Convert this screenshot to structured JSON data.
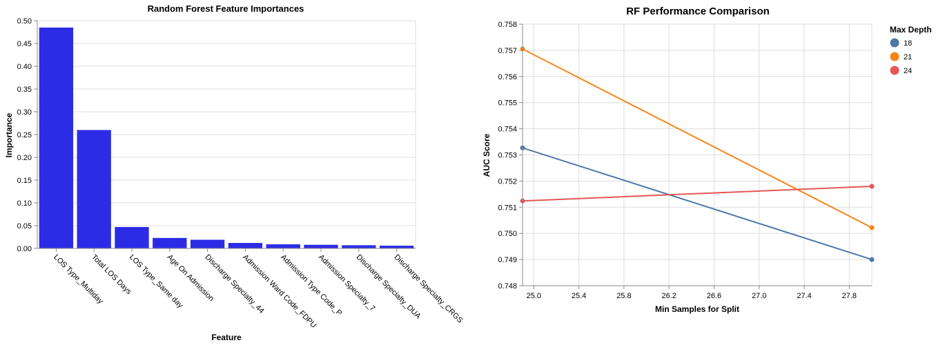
{
  "chart_data": [
    {
      "type": "bar",
      "title": "Random Forest Feature Importances",
      "xlabel": "Feature",
      "ylabel": "Importance",
      "categories": [
        "LOS Type_Multiday",
        "Total LOS Days",
        "LOS Type_Same day",
        "Age On Admission",
        "Discharge Specialty_44",
        "Admission Ward Code_FDPU",
        "Admission Type Code_P",
        "Admission Specialty_7",
        "Discharge Specialty_DUA",
        "Discharge Specialty_CRGS"
      ],
      "values": [
        0.485,
        0.26,
        0.047,
        0.023,
        0.019,
        0.012,
        0.009,
        0.008,
        0.007,
        0.006
      ],
      "ylim": [
        0,
        0.5
      ],
      "yticks": [
        "0.00",
        "0.05",
        "0.10",
        "0.15",
        "0.20",
        "0.25",
        "0.30",
        "0.35",
        "0.40",
        "0.45",
        "0.50"
      ],
      "bar_color": "#2c2ce6",
      "grid": true
    },
    {
      "type": "line",
      "title": "RF Performance Comparison",
      "xlabel": "Min Samples for Split",
      "ylabel": "AUC Score",
      "xlim": [
        24.9,
        28.0
      ],
      "ylim": [
        0.748,
        0.758
      ],
      "xticks": [
        "25.0",
        "25.4",
        "25.8",
        "26.2",
        "26.6",
        "27.0",
        "27.4",
        "27.8"
      ],
      "yticks": [
        "0.748",
        "0.749",
        "0.750",
        "0.751",
        "0.752",
        "0.753",
        "0.754",
        "0.755",
        "0.756",
        "0.757",
        "0.758"
      ],
      "legend_title": "Max Depth",
      "legend_position": "right",
      "grid": true,
      "series": [
        {
          "name": "18",
          "color": "#4c78a8",
          "x": [
            24.9,
            28.0
          ],
          "y": [
            0.75327,
            0.749
          ]
        },
        {
          "name": "21",
          "color": "#f58518",
          "x": [
            24.9,
            28.0
          ],
          "y": [
            0.75705,
            0.75022
          ]
        },
        {
          "name": "24",
          "color": "#e45756",
          "x": [
            24.9,
            28.0
          ],
          "y": [
            0.75124,
            0.7518
          ]
        }
      ]
    }
  ]
}
